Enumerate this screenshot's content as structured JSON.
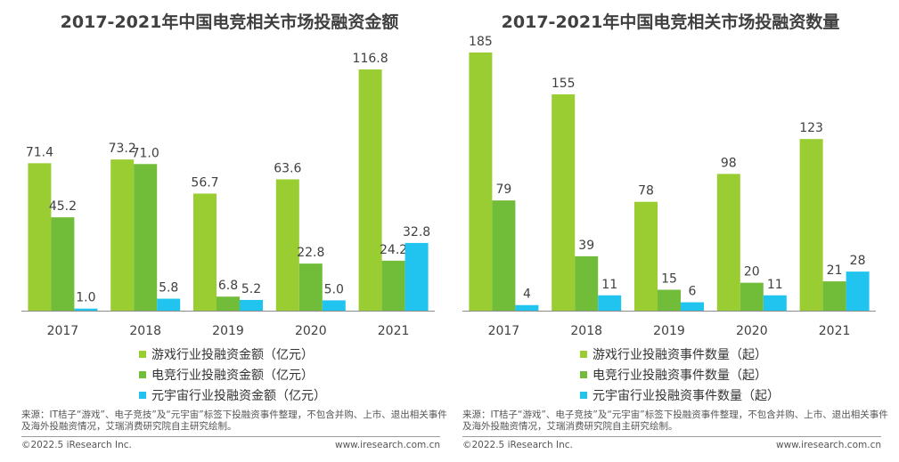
{
  "chart_data": [
    {
      "type": "bar",
      "title": "2017-2021年中国电竞相关市场投融资金额",
      "categories": [
        "2017",
        "2018",
        "2019",
        "2020",
        "2021"
      ],
      "series": [
        {
          "name": "游戏行业投融资金额（亿元）",
          "color": "#9acd32",
          "values": [
            71.4,
            73.2,
            56.7,
            63.6,
            116.8
          ]
        },
        {
          "name": "电竞行业投融资金额（亿元）",
          "color": "#71bd3a",
          "values": [
            45.2,
            71.0,
            6.8,
            22.8,
            24.2
          ]
        },
        {
          "name": "元宇宙行业投融资金额（亿元）",
          "color": "#21c4ef",
          "values": [
            1.0,
            5.8,
            5.2,
            5.0,
            32.8
          ]
        }
      ],
      "ylim": [
        0,
        125
      ],
      "grid": false,
      "legend": "bottom",
      "source": "来源：IT桔子“游戏”、电子竞技”及“元宇宙”标签下投融资事件整理，不包含并购、上市、退出相关事件及海外投融资情况，艾瑞消费研究院自主研究绘制。",
      "copyright": "©2022.5 iResearch Inc.",
      "website": "www.iresearch.com.cn"
    },
    {
      "type": "bar",
      "title": "2017-2021年中国电竞相关市场投融资数量",
      "categories": [
        "2017",
        "2018",
        "2019",
        "2020",
        "2021"
      ],
      "series": [
        {
          "name": "游戏行业投融资事件数量（起）",
          "color": "#9acd32",
          "values": [
            185,
            155,
            78,
            98,
            123
          ]
        },
        {
          "name": "电竞行业投融资事件数量（起）",
          "color": "#71bd3a",
          "values": [
            79,
            39,
            15,
            20,
            21
          ]
        },
        {
          "name": "元宇宙行业投融资事件数量（起）",
          "color": "#21c4ef",
          "values": [
            4,
            11,
            6,
            11,
            28
          ]
        }
      ],
      "ylim": [
        0,
        185
      ],
      "grid": false,
      "legend": "bottom",
      "source": "来源：IT桔子“游戏”、电子竞技”及“元宇宙”标签下投融资事件整理，不包含并购、上市、退出相关事件及海外投融资情况，艾瑞消费研究院自主研究绘制。",
      "copyright": "©2022.5 iResearch Inc.",
      "website": "www.iresearch.com.cn"
    }
  ]
}
